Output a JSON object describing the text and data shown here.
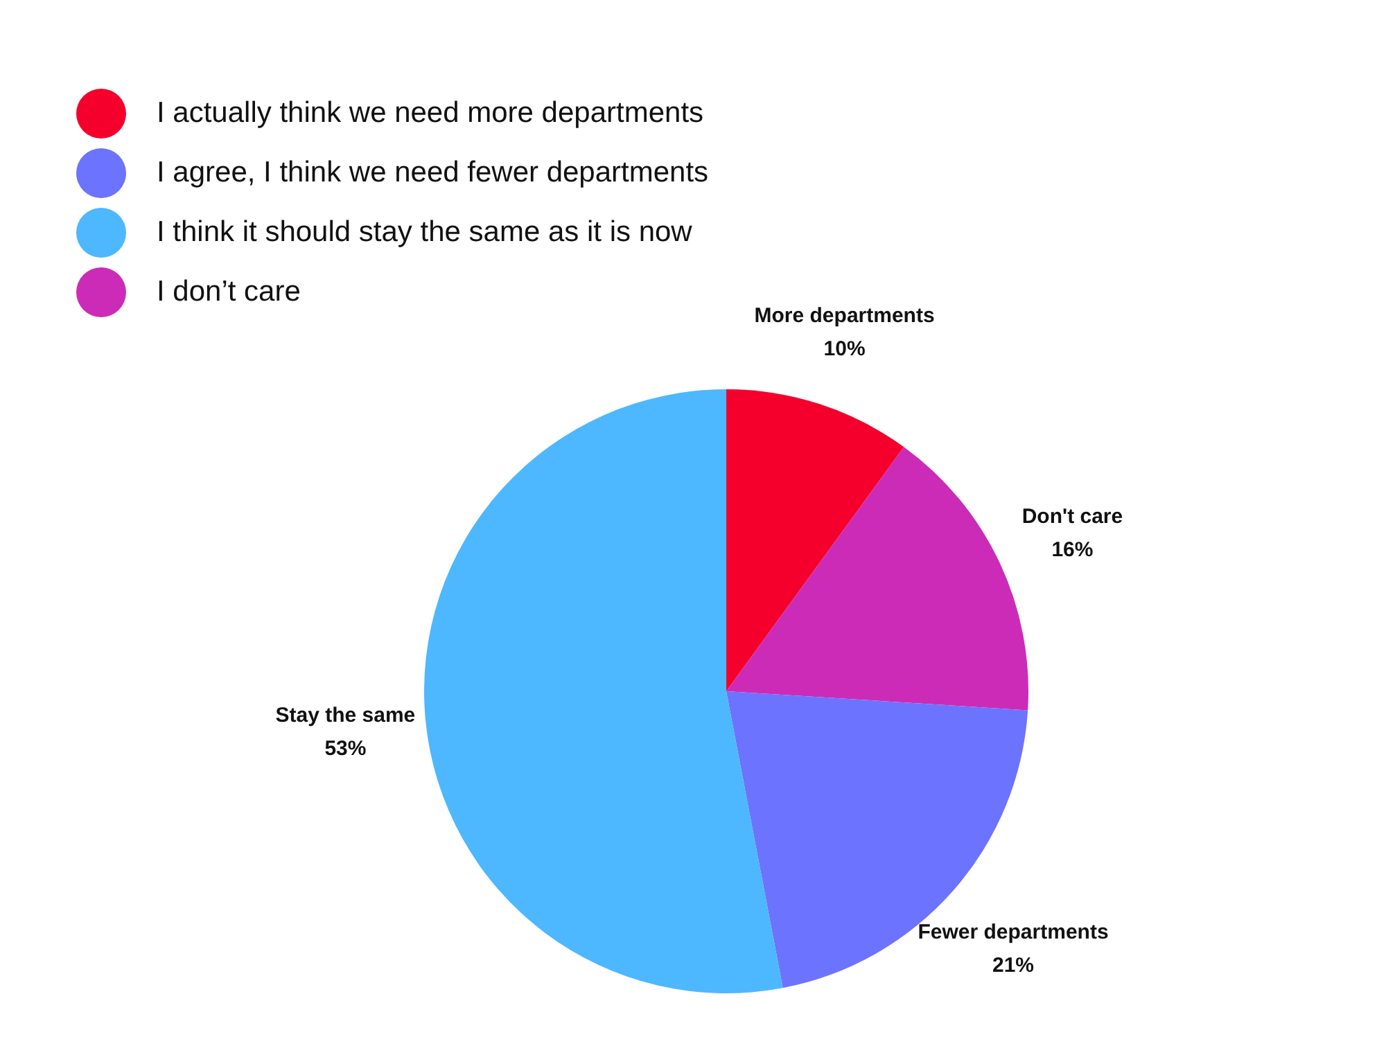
{
  "chart_data": {
    "type": "pie",
    "categories": [
      "More departments",
      "Don't care",
      "Fewer departments",
      "Stay the same"
    ],
    "values": [
      10,
      16,
      21,
      53
    ],
    "colors": [
      "#f5002d",
      "#cc2bb8",
      "#6c73ff",
      "#4db8ff"
    ],
    "value_labels": [
      "10%",
      "16%",
      "21%",
      "53%"
    ],
    "annotations": [
      {
        "text": "I actually think we need more departments",
        "x": "More departments"
      },
      {
        "text": "I agree, I think we need fewer departments",
        "x": "Fewer departments"
      },
      {
        "text": "I think it should stay the same as it is now",
        "x": "Stay the same"
      },
      {
        "text": "I don’t care",
        "x": "Don't care"
      }
    ]
  }
}
